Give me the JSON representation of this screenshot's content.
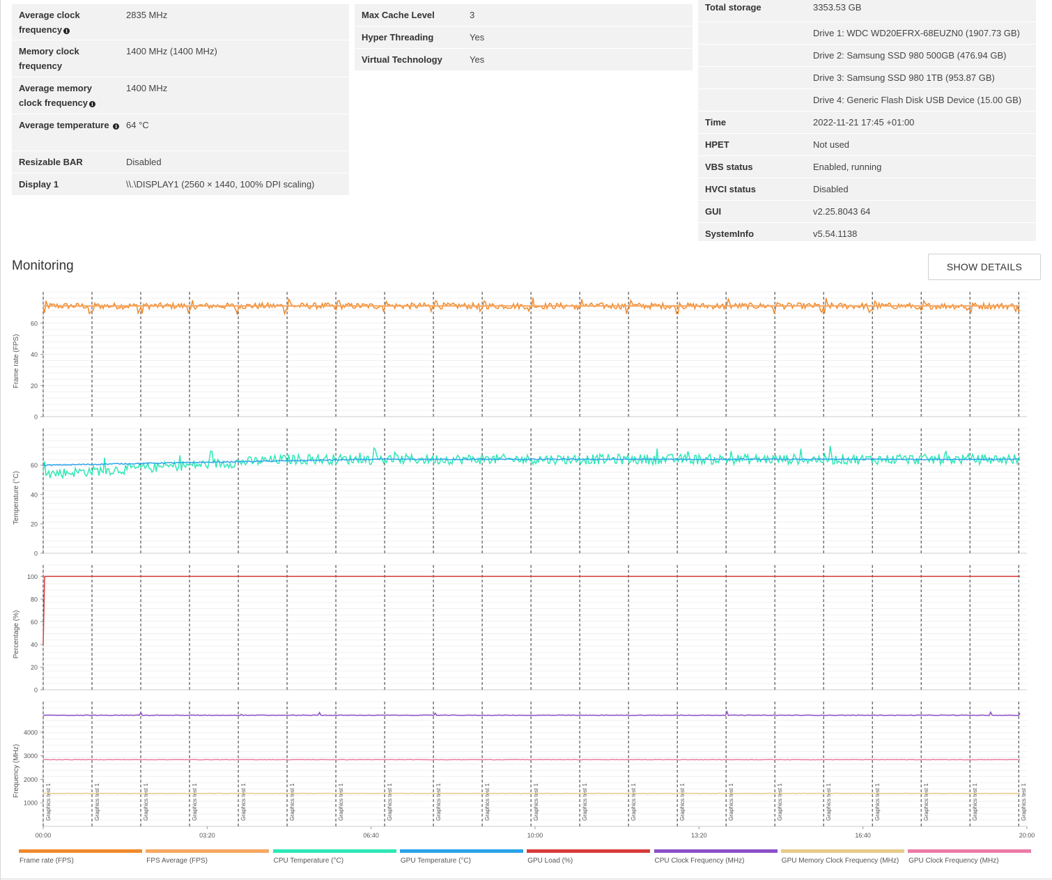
{
  "left_table": {
    "rows": [
      {
        "label": "Average clock frequency",
        "value": "2835 MHz",
        "info": true
      },
      {
        "label": "Memory clock frequency",
        "value": "1400 MHz (1400 MHz)",
        "info": false
      },
      {
        "label": "Average memory clock frequency",
        "value": "1400 MHz",
        "info": true
      },
      {
        "label": "Average temperature",
        "value": "64 °C",
        "info": true
      },
      {
        "label": "Resizable BAR",
        "value": "Disabled",
        "info": false
      },
      {
        "label": "Display 1",
        "value": "\\\\.\\DISPLAY1 (2560 × 1440, 100% DPI scaling)",
        "info": false
      }
    ]
  },
  "middle_table": {
    "rows": [
      {
        "label": "Max Cache Level",
        "value": "3"
      },
      {
        "label": "Hyper Threading",
        "value": "Yes"
      },
      {
        "label": "Virtual Technology",
        "value": "Yes"
      }
    ]
  },
  "right_table": {
    "rows": [
      {
        "label": "Total storage",
        "value": "3353.53 GB"
      },
      {
        "label": "",
        "value": "Drive 1: WDC WD20EFRX-68EUZN0 (1907.73 GB)"
      },
      {
        "label": "",
        "value": "Drive 2: Samsung SSD 980 500GB (476.94 GB)"
      },
      {
        "label": "",
        "value": "Drive 3: Samsung SSD 980 1TB (953.87 GB)"
      },
      {
        "label": "",
        "value": "Drive 4: Generic Flash Disk USB Device (15.00 GB)"
      },
      {
        "label": "Time",
        "value": "2022-11-21 17:45 +01:00"
      },
      {
        "label": "HPET",
        "value": "Not used"
      },
      {
        "label": "VBS status",
        "value": "Enabled, running"
      },
      {
        "label": "HVCI status",
        "value": "Disabled"
      },
      {
        "label": "GUI",
        "value": "v2.25.8043 64"
      },
      {
        "label": "SystemInfo",
        "value": "v5.54.1138"
      }
    ]
  },
  "monitoring": {
    "title": "Monitoring",
    "show_details_label": "SHOW DETAILS"
  },
  "chart_data": {
    "type": "line",
    "x_axis": {
      "unit": "mm:ss",
      "ticks": [
        "00:00",
        "03:20",
        "06:40",
        "10:00",
        "13:20",
        "16:40",
        "20:00"
      ],
      "range_seconds": [
        0,
        1200
      ]
    },
    "markers": {
      "label": "Graphics test 1",
      "times_seconds": [
        0,
        59.5,
        119,
        178.5,
        238,
        297.5,
        357,
        416.5,
        476,
        535.5,
        595,
        654.5,
        714,
        773.5,
        833,
        892.5,
        952,
        1011.5,
        1071,
        1130.5,
        1190
      ]
    },
    "panels": [
      {
        "ylabel": "Frame rate (FPS)",
        "ylim": [
          0,
          80
        ],
        "yticks": [
          0,
          20,
          40,
          60
        ],
        "series": [
          {
            "name": "Frame rate (FPS)",
            "color": "#f08a2c",
            "pattern": "sawtooth",
            "min": 66,
            "max": 77,
            "mean": 71
          },
          {
            "name": "FPS Average (FPS)",
            "color": "#f7a760",
            "pattern": "flat",
            "value": 71
          }
        ]
      },
      {
        "ylabel": "Temperature (°C)",
        "ylim": [
          0,
          85
        ],
        "yticks": [
          0,
          20,
          40,
          60
        ],
        "series": [
          {
            "name": "CPU Temperature (°C)",
            "color": "#2ee8b6",
            "pattern": "noisy-rising",
            "start": 54,
            "end": 64,
            "spike_max": 80
          },
          {
            "name": "GPU Temperature (°C)",
            "color": "#2ba3ea",
            "pattern": "rising",
            "start": 60,
            "end": 64
          }
        ]
      },
      {
        "ylabel": "Percentage (%)",
        "ylim": [
          0,
          110
        ],
        "yticks": [
          0,
          20,
          40,
          60,
          80,
          100
        ],
        "series": [
          {
            "name": "GPU Load (%)",
            "color": "#d93b3b",
            "pattern": "step",
            "start": 40,
            "value": 100
          }
        ]
      },
      {
        "ylabel": "Frequency (MHz)",
        "ylim": [
          0,
          5300
        ],
        "yticks": [
          1000,
          2000,
          3000,
          4000
        ],
        "series": [
          {
            "name": "CPU Clock Frequency (MHz)",
            "color": "#8c4fc9",
            "pattern": "flat",
            "value": 4720
          },
          {
            "name": "GPU Memory Clock Frequency (MHz)",
            "color": "#e8c98a",
            "pattern": "flat",
            "value": 1400
          },
          {
            "name": "GPU Clock Frequency (MHz)",
            "color": "#ec7ba7",
            "pattern": "flat",
            "value": 2835
          }
        ]
      }
    ],
    "legend": [
      {
        "name": "Frame rate (FPS)",
        "color": "#f08a2c"
      },
      {
        "name": "FPS Average (FPS)",
        "color": "#f7a760"
      },
      {
        "name": "CPU Temperature (°C)",
        "color": "#2ee8b6"
      },
      {
        "name": "GPU Temperature (°C)",
        "color": "#2ba3ea"
      },
      {
        "name": "GPU Load (%)",
        "color": "#d93b3b"
      },
      {
        "name": "CPU Clock Frequency (MHz)",
        "color": "#8c4fc9"
      },
      {
        "name": "GPU Memory Clock Frequency (MHz)",
        "color": "#e8c98a"
      },
      {
        "name": "GPU Clock Frequency (MHz)",
        "color": "#ec7ba7"
      }
    ]
  }
}
